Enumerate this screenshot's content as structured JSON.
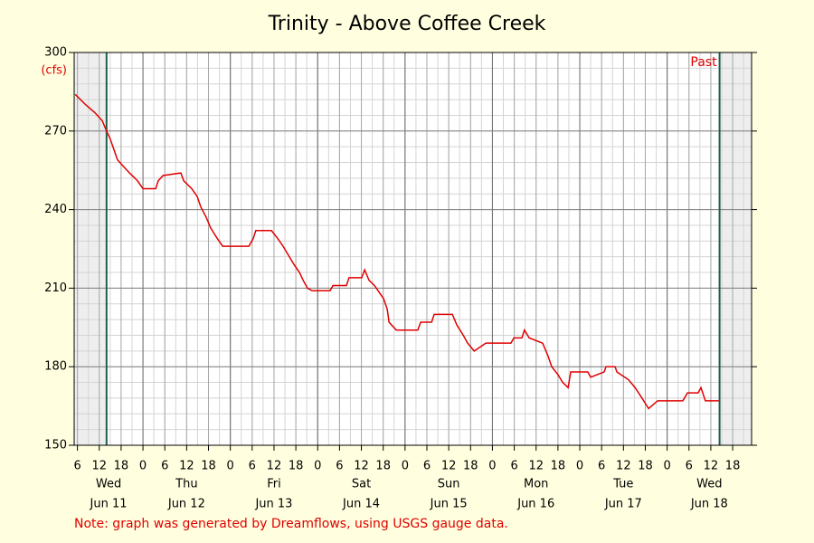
{
  "chart_data": {
    "type": "line",
    "title": "Trinity - Above Coffee Creek",
    "y_label": "(cfs)",
    "note": "Note: graph was generated by Dreamflows, using USGS gauge data.",
    "window_label": "Past",
    "window": [
      14,
      182.4
    ],
    "xlim": [
      5.1,
      191.2
    ],
    "ylim": [
      150,
      300
    ],
    "yticks": [
      150,
      180,
      210,
      240,
      270,
      300
    ],
    "minor_xstep": 3,
    "minor_ystep": 6,
    "grid": true,
    "xticks": [
      6,
      12,
      18,
      {
        "value": 24,
        "label": "0"
      },
      {
        "value": 30,
        "label": "6"
      },
      {
        "value": 36,
        "label": "12"
      },
      {
        "value": 42,
        "label": "18"
      },
      {
        "value": 48,
        "label": "0"
      },
      {
        "value": 54,
        "label": "6"
      },
      {
        "value": 60,
        "label": "12"
      },
      {
        "value": 66,
        "label": "18"
      },
      {
        "value": 72,
        "label": "0"
      },
      {
        "value": 78,
        "label": "6"
      },
      {
        "value": 84,
        "label": "12"
      },
      {
        "value": 90,
        "label": "18"
      },
      {
        "value": 96,
        "label": "0"
      },
      {
        "value": 102,
        "label": "6"
      },
      {
        "value": 108,
        "label": "12"
      },
      {
        "value": 114,
        "label": "18"
      },
      {
        "value": 120,
        "label": "0"
      },
      {
        "value": 126,
        "label": "6"
      },
      {
        "value": 132,
        "label": "12"
      },
      {
        "value": 138,
        "label": "18"
      },
      {
        "value": 144,
        "label": "0"
      },
      {
        "value": 150,
        "label": "6"
      },
      {
        "value": 156,
        "label": "12"
      },
      {
        "value": 162,
        "label": "18"
      },
      {
        "value": 168,
        "label": "0"
      },
      {
        "value": 174,
        "label": "6"
      },
      {
        "value": 180,
        "label": "12"
      },
      {
        "value": 186,
        "label": "18"
      }
    ],
    "days": [
      {
        "weekday": "Wed",
        "date": "Jun 11",
        "start": 0
      },
      {
        "weekday": "Thu",
        "date": "Jun 12",
        "start": 24
      },
      {
        "weekday": "Fri",
        "date": "Jun 13",
        "start": 48
      },
      {
        "weekday": "Sat",
        "date": "Jun 14",
        "start": 72
      },
      {
        "weekday": "Sun",
        "date": "Jun 15",
        "start": 96
      },
      {
        "weekday": "Mon",
        "date": "Jun 16",
        "start": 120
      },
      {
        "weekday": "Tue",
        "date": "Jun 17",
        "start": 144
      },
      {
        "weekday": "Wed",
        "date": "Jun 18",
        "start": 168
      }
    ],
    "series": [
      {
        "name": "Flow",
        "color": "#e00000",
        "x": [
          5.4,
          8.3,
          10.8,
          12.8,
          14,
          15,
          16,
          17,
          18.3,
          20.3,
          22.5,
          24,
          27.5,
          28.2,
          29.5,
          34.4,
          35.2,
          37.4,
          38.9,
          39.9,
          41.4,
          42.6,
          44.4,
          45.9,
          53.1,
          54.3,
          55,
          59.3,
          61,
          62.5,
          64.2,
          65.5,
          67,
          68,
          69.2,
          70.5,
          75.4,
          76.2,
          79.9,
          80.6,
          84.1,
          84.9,
          86.1,
          87.6,
          89.1,
          90.1,
          91.1,
          91.6,
          93.6,
          99.5,
          100.3,
          103.3,
          104,
          109,
          110.2,
          112,
          113.2,
          115,
          118.2,
          125.1,
          125.9,
          128.1,
          128.8,
          130.1,
          133.8,
          135.3,
          136.3,
          138,
          139.3,
          140.8,
          141.5,
          146.2,
          147,
          150.7,
          151.2,
          153.7,
          154.2,
          157.4,
          159.2,
          161.1,
          162.9,
          165.4,
          172.3,
          173.6,
          176.5,
          177.3,
          178.5,
          179.8,
          182.2
        ],
        "values": [
          284,
          280,
          277,
          274,
          270,
          267,
          263,
          259,
          257,
          254,
          251,
          248,
          248,
          251,
          253,
          254,
          251,
          248,
          245,
          241,
          237,
          233,
          229,
          226,
          226,
          229,
          232,
          232,
          229,
          226,
          222,
          219,
          216,
          213,
          210,
          209,
          209,
          211,
          211,
          214,
          214,
          217,
          213,
          211,
          208,
          206,
          202,
          197,
          194,
          194,
          197,
          197,
          200,
          200,
          196,
          192,
          189,
          186,
          189,
          189,
          191,
          191,
          194,
          191,
          189,
          184,
          180,
          177,
          174,
          172,
          178,
          178,
          176,
          178,
          180,
          180,
          178,
          175,
          172,
          168,
          164,
          167,
          167,
          170,
          170,
          172,
          167,
          167,
          167
        ]
      }
    ]
  }
}
